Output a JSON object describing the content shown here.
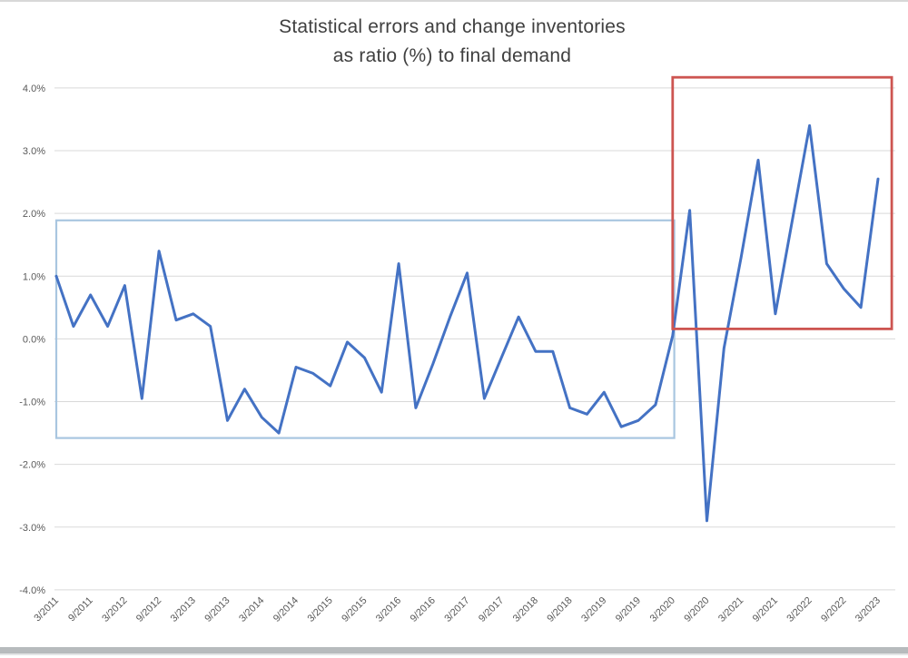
{
  "title": {
    "line1": "Statistical errors and change inventories",
    "line2": "as ratio (%) to final demand"
  },
  "chart_data": {
    "type": "line",
    "title": "Statistical errors and change inventories as ratio (%) to final demand",
    "xlabel": "",
    "ylabel": "",
    "ylim": [
      -4,
      4
    ],
    "ytick_step": 1,
    "ytick_labels": [
      "4.0%",
      "3.0%",
      "2.0%",
      "1.0%",
      "0.0%",
      "-1.0%",
      "-2.0%",
      "-3.0%",
      "-4.0%"
    ],
    "grid": true,
    "legend": "none",
    "x_label_every": 2,
    "xtick_labels_shown": [
      "3/2011",
      "9/2011",
      "3/2012",
      "9/2012",
      "3/2013",
      "9/2013",
      "3/2014",
      "9/2014",
      "3/2015",
      "9/2015",
      "3/2016",
      "9/2016",
      "3/2017",
      "9/2017",
      "3/2018",
      "9/2018",
      "3/2019",
      "9/2019",
      "3/2020",
      "9/2020",
      "3/2021",
      "9/2021",
      "3/2022",
      "9/2022",
      "3/2023"
    ],
    "categories": [
      "3/2011",
      "6/2011",
      "9/2011",
      "12/2011",
      "3/2012",
      "6/2012",
      "9/2012",
      "12/2012",
      "3/2013",
      "6/2013",
      "9/2013",
      "12/2013",
      "3/2014",
      "6/2014",
      "9/2014",
      "12/2014",
      "3/2015",
      "6/2015",
      "9/2015",
      "12/2015",
      "3/2016",
      "6/2016",
      "9/2016",
      "12/2016",
      "3/2017",
      "6/2017",
      "9/2017",
      "12/2017",
      "3/2018",
      "6/2018",
      "9/2018",
      "12/2018",
      "3/2019",
      "6/2019",
      "9/2019",
      "12/2019",
      "3/2020",
      "6/2020",
      "9/2020",
      "12/2020",
      "3/2021",
      "6/2021",
      "9/2021",
      "12/2021",
      "3/2022",
      "6/2022",
      "9/2022",
      "12/2022",
      "3/2023"
    ],
    "values": [
      1.0,
      0.2,
      0.7,
      0.2,
      0.85,
      -0.95,
      1.4,
      0.3,
      0.4,
      0.2,
      -1.3,
      -0.8,
      -1.25,
      -1.5,
      -0.45,
      -0.55,
      -0.75,
      -0.05,
      -0.3,
      -0.85,
      1.2,
      -1.1,
      -0.4,
      0.35,
      1.05,
      -0.95,
      -0.3,
      0.35,
      -0.2,
      -0.2,
      -1.1,
      -1.2,
      -0.85,
      -1.4,
      -1.3,
      -1.05,
      0.05,
      2.05,
      -2.9,
      -0.15,
      1.3,
      2.85,
      0.4,
      1.9,
      3.4,
      1.2,
      0.8,
      0.5,
      2.55
    ],
    "series_color": "#4472c4",
    "grid_color": "#d9d9d9",
    "axis_label_color": "#595959",
    "annotations": [
      {
        "name": "blue-annotation-box",
        "type": "rect",
        "x_from_idx": 0,
        "x_to_idx": 36.1,
        "y_from": -1.58,
        "y_to": 1.89,
        "color": "#a9c6e0",
        "stroke_width": 2.2
      },
      {
        "name": "red-annotation-box",
        "type": "rect",
        "x_from_idx": 36,
        "x_to_idx": 48.8,
        "y_from": 0.16,
        "y_to": 4.17,
        "color": "#cd5551",
        "stroke_width": 2.8
      }
    ]
  }
}
